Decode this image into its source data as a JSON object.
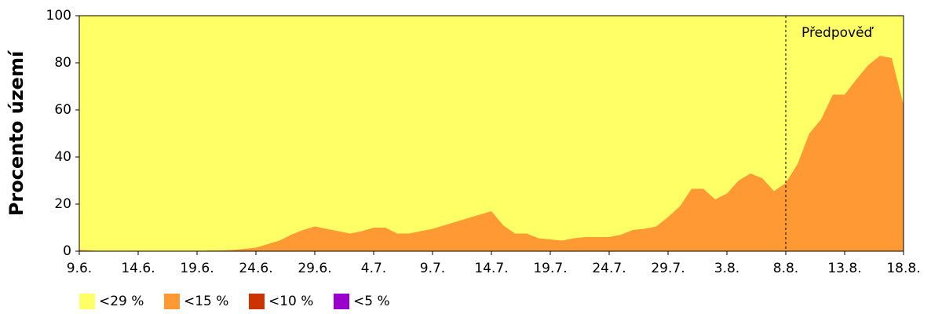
{
  "chart_data": {
    "type": "area",
    "y_label": "Procento území",
    "categories": [
      "9.6.",
      null,
      null,
      null,
      null,
      "14.6.",
      null,
      null,
      null,
      null,
      "19.6.",
      null,
      null,
      null,
      null,
      "24.6.",
      null,
      null,
      null,
      null,
      "29.6.",
      null,
      null,
      null,
      null,
      "4.7.",
      null,
      null,
      null,
      null,
      "9.7.",
      null,
      null,
      null,
      null,
      "14.7.",
      null,
      null,
      null,
      null,
      "19.7.",
      null,
      null,
      null,
      null,
      "24.7.",
      null,
      null,
      null,
      null,
      "29.7.",
      null,
      null,
      null,
      null,
      "3.8.",
      null,
      null,
      null,
      null,
      "8.8.",
      null,
      null,
      null,
      null,
      "13.8.",
      null,
      null,
      null,
      null,
      "18.8."
    ],
    "series": [
      {
        "name": "<29 %",
        "color": "#ffff66",
        "values": [
          100,
          100,
          100,
          100,
          100,
          100,
          100,
          100,
          100,
          100,
          100,
          100,
          100,
          100,
          100,
          100,
          100,
          100,
          100,
          100,
          100,
          100,
          100,
          100,
          100,
          100,
          100,
          100,
          100,
          100,
          100,
          100,
          100,
          100,
          100,
          100,
          100,
          100,
          100,
          100,
          100,
          100,
          100,
          100,
          100,
          100,
          100,
          100,
          100,
          100,
          100,
          100,
          100,
          100,
          100,
          100,
          100,
          100,
          100,
          100,
          100,
          100,
          100,
          100,
          100,
          100,
          100,
          100,
          100,
          100,
          100
        ]
      },
      {
        "name": "<15 %",
        "color": "#ff9933",
        "values": [
          0.5,
          0.3,
          0,
          0,
          0,
          0,
          0,
          0,
          0,
          0,
          0,
          0.3,
          0.3,
          0.5,
          1,
          1.5,
          3,
          4.5,
          7,
          9,
          10.5,
          9.5,
          8.5,
          7.5,
          8.5,
          10,
          10,
          7.5,
          7.5,
          8.5,
          9.5,
          11,
          12.5,
          14,
          15.5,
          17,
          11,
          7.5,
          7.5,
          5.5,
          5,
          4.5,
          5.5,
          6,
          6,
          6,
          7,
          9,
          9.5,
          10.5,
          14.5,
          19,
          26.5,
          26.5,
          22,
          24.5,
          30,
          33,
          31,
          25.5,
          29,
          37,
          50,
          56,
          66.5,
          66.5,
          73,
          79,
          83,
          82,
          62
        ]
      },
      {
        "name": "<10 %",
        "color": "#cc3300",
        "values": [
          0,
          0,
          0,
          0,
          0,
          0,
          0,
          0,
          0,
          0,
          0,
          0,
          0,
          0,
          0,
          0,
          0,
          0,
          0,
          0,
          0,
          0,
          0,
          0,
          0,
          0,
          0,
          0,
          0,
          0,
          0,
          0,
          0,
          0,
          0,
          0,
          0,
          0,
          0,
          0,
          0,
          0,
          0,
          0,
          0,
          0,
          0,
          0,
          0,
          0,
          0,
          0,
          0,
          0,
          0,
          0,
          0,
          0,
          0,
          0,
          0,
          0,
          0,
          0,
          0,
          0,
          0,
          0,
          0,
          0,
          0
        ]
      },
      {
        "name": "<5 %",
        "color": "#9900cc",
        "values": [
          0,
          0,
          0,
          0,
          0,
          0,
          0,
          0,
          0,
          0,
          0,
          0,
          0,
          0,
          0,
          0,
          0,
          0,
          0,
          0,
          0,
          0,
          0,
          0,
          0,
          0,
          0,
          0,
          0,
          0,
          0,
          0,
          0,
          0,
          0,
          0,
          0,
          0,
          0,
          0,
          0,
          0,
          0,
          0,
          0,
          0,
          0,
          0,
          0,
          0,
          0,
          0,
          0,
          0,
          0,
          0,
          0,
          0,
          0,
          0,
          0,
          0,
          0,
          0,
          0,
          0,
          0,
          0,
          0,
          0,
          0
        ]
      }
    ],
    "forecast": {
      "label": "Předpověď",
      "start": "8.8."
    },
    "ylim": [
      0,
      100
    ],
    "yticks": [
      0,
      20,
      40,
      60,
      80,
      100
    ],
    "grid": false
  }
}
